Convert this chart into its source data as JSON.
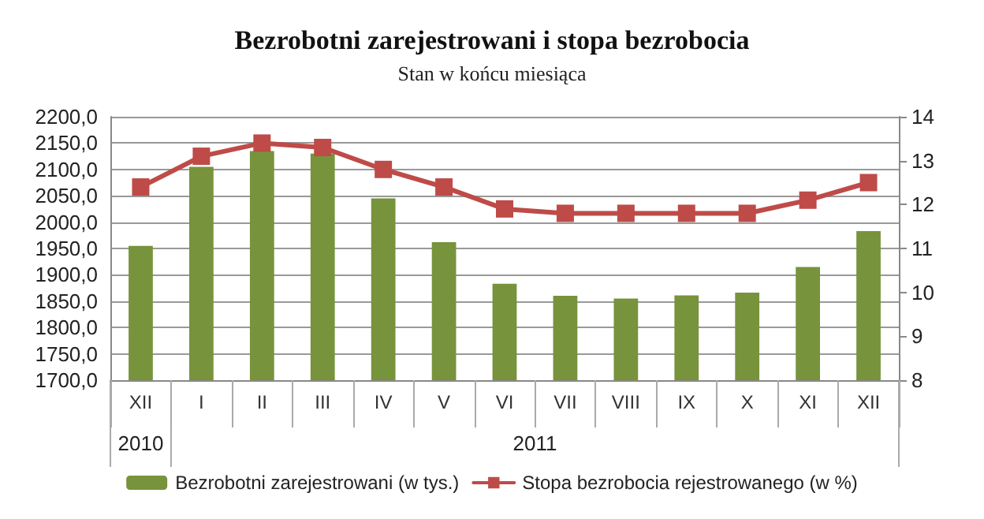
{
  "chart_data": {
    "type": "bar",
    "title": "Bezrobotni zarejestrowani i stopa bezrobocia",
    "subtitle": "Stan w końcu miesiąca",
    "categories": [
      "XII",
      "I",
      "II",
      "III",
      "IV",
      "V",
      "VI",
      "VII",
      "VIII",
      "IX",
      "X",
      "XI",
      "XII"
    ],
    "series": [
      {
        "name": "Bezrobotni zarejestrowani (w tys.)",
        "color": "#77933c",
        "values": [
          1955,
          2105,
          2135,
          2130,
          2045,
          1962,
          1883,
          1860,
          1855,
          1861,
          1866,
          1915,
          1983
        ]
      },
      {
        "name": "Stopa bezrobocia rejestrowanego (w %)",
        "type": "line",
        "axis": "y2",
        "color": "#be4b48",
        "values": [
          12.4,
          13.1,
          13.4,
          13.3,
          12.8,
          12.4,
          11.9,
          11.8,
          11.8,
          11.8,
          11.8,
          12.1,
          12.5
        ]
      }
    ],
    "ylim": [
      1700,
      2200
    ],
    "yticks": [
      {
        "value": 1700,
        "label": "1700,0"
      },
      {
        "value": 1750,
        "label": "1750,0"
      },
      {
        "value": 1800,
        "label": "1800,0"
      },
      {
        "value": 1850,
        "label": "1850,0"
      },
      {
        "value": 1900,
        "label": "1900,0"
      },
      {
        "value": 1950,
        "label": "1950,0"
      },
      {
        "value": 2000,
        "label": "2000,0"
      },
      {
        "value": 2050,
        "label": "2050,0"
      },
      {
        "value": 2100,
        "label": "2100,0"
      },
      {
        "value": 2150,
        "label": "2150,0"
      },
      {
        "value": 2200,
        "label": "2200,0"
      }
    ],
    "y2lim": [
      8,
      14
    ],
    "y2ticks": [
      8,
      9,
      10,
      11,
      12,
      13,
      14
    ],
    "annotations": [
      "2010",
      "2011"
    ],
    "grid": "y",
    "legend": "bottom",
    "marker": "square",
    "line_style": "solid"
  }
}
